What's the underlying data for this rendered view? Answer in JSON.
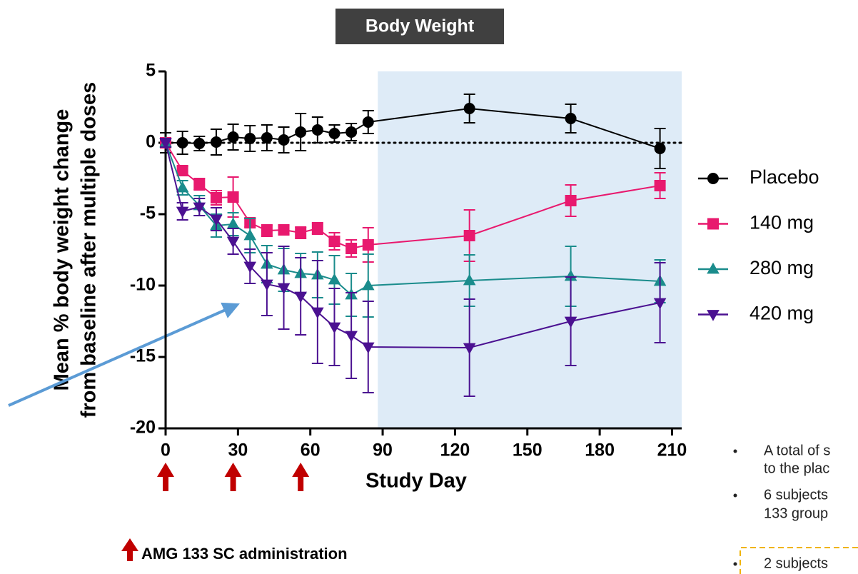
{
  "chart_data": {
    "type": "line",
    "title": "Body Weight",
    "y_label": [
      "Mean % body weight change",
      "from baseline after multiple doses"
    ],
    "x_label": "Study Day",
    "x": [
      0,
      7,
      14,
      21,
      28,
      35,
      42,
      49,
      56,
      63,
      70,
      77,
      84,
      126,
      168,
      205
    ],
    "xlim": [
      0,
      214
    ],
    "xticks": [
      0,
      30,
      60,
      90,
      120,
      150,
      180,
      210
    ],
    "ylim": [
      -20,
      5
    ],
    "yticks": [
      -20,
      -15,
      -10,
      -5,
      0,
      5
    ],
    "highlight_xrange": [
      88,
      214
    ],
    "reference_line": 0,
    "series": [
      {
        "name": "Placebo",
        "color": "#000000",
        "marker": "circle",
        "values": [
          0,
          0,
          -0.05,
          0.05,
          0.4,
          0.3,
          0.35,
          0.2,
          0.75,
          0.9,
          0.65,
          0.75,
          1.45,
          2.4,
          1.7,
          -0.4
        ],
        "errors": [
          0.7,
          0.8,
          0.5,
          0.9,
          0.9,
          0.9,
          0.9,
          0.9,
          1.3,
          0.9,
          0.6,
          0.6,
          0.8,
          1.0,
          1.0,
          1.4
        ]
      },
      {
        "name": "140 mg",
        "color": "#e8196e",
        "marker": "square",
        "values": [
          0,
          -1.95,
          -2.9,
          -3.85,
          -3.8,
          -5.6,
          -6.15,
          -6.1,
          -6.3,
          -6,
          -6.9,
          -7.4,
          -7.15,
          -6.5,
          -4.05,
          -3
        ],
        "errors": [
          0.3,
          0.3,
          0.4,
          0.5,
          1.4,
          0.3,
          0.4,
          0.3,
          0.4,
          0.4,
          0.6,
          0.6,
          1.2,
          1.8,
          1.1,
          0.9
        ]
      },
      {
        "name": "280 mg",
        "color": "#1a8c8c",
        "marker": "triangle-up",
        "values": [
          0,
          -3.15,
          -4.4,
          -5.8,
          -5.7,
          -6.5,
          -8.5,
          -8.9,
          -9.15,
          -9.25,
          -9.6,
          -10.65,
          -10,
          -9.65,
          -9.35,
          -9.7
        ],
        "errors": [
          0.3,
          0.5,
          0.7,
          0.8,
          0.8,
          1.2,
          1.3,
          1.5,
          1.4,
          1.6,
          1.7,
          1.5,
          2.2,
          1.8,
          2.1,
          1.5
        ]
      },
      {
        "name": "420 mg",
        "color": "#4b1191",
        "marker": "triangle-down",
        "values": [
          0,
          -4.8,
          -4.5,
          -5.35,
          -6.9,
          -8.65,
          -9.9,
          -10.15,
          -10.75,
          -11.85,
          -12.9,
          -13.5,
          -14.3,
          -14.35,
          -12.5,
          -11.2
        ],
        "errors": [
          0.3,
          0.6,
          0.6,
          0.8,
          0.9,
          1.2,
          2.2,
          2.9,
          2.7,
          3.6,
          2.7,
          3.0,
          3.2,
          3.4,
          3.1,
          2.8
        ]
      }
    ],
    "dose_days": [
      0,
      28,
      56
    ],
    "dose_legend": "AMG 133 SC administration",
    "notes": [
      "A total of s",
      "to the plac",
      "6 subjects",
      "133 group",
      "2 subjects"
    ]
  }
}
